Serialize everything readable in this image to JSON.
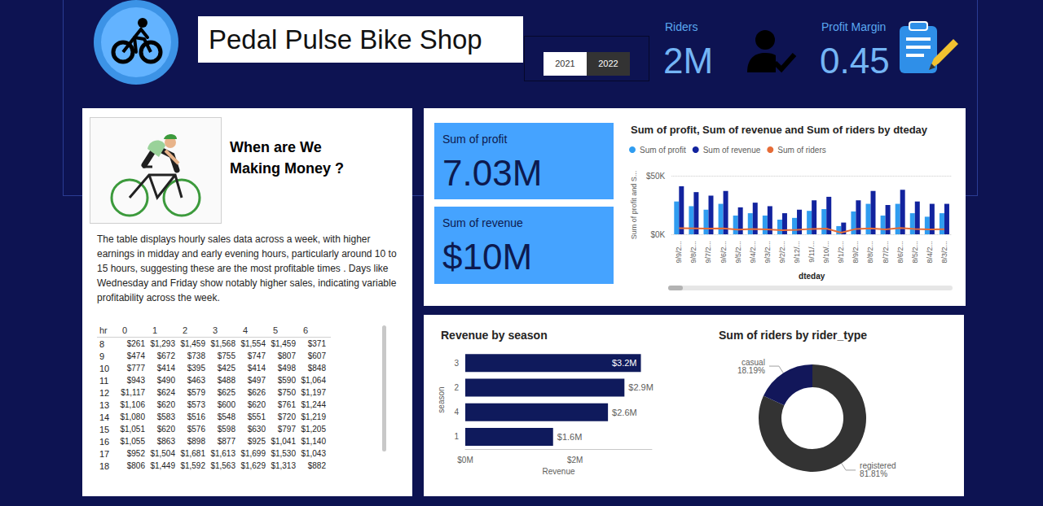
{
  "header": {
    "title": "Pedal Pulse Bike Shop",
    "slicer": {
      "options": [
        "2021",
        "2022"
      ],
      "selected": "2022"
    },
    "kpis": [
      {
        "label": "Riders",
        "value": "2M"
      },
      {
        "label": "Profit Margin",
        "value": "0.45"
      }
    ]
  },
  "story": {
    "heading": "When are We Making Money ?",
    "text": "The table displays hourly sales data across a week, with higher earnings in midday and early evening hours, particularly around 10 to 15 hours, suggesting these are the most profitable times . Days like Wednesday and Friday show notably higher sales, indicating variable profitability across the week."
  },
  "table": {
    "columns": [
      "hr",
      "0",
      "1",
      "2",
      "3",
      "4",
      "5",
      "6"
    ],
    "rows": [
      [
        "8",
        "$261",
        "$1,293",
        "$1,459",
        "$1,568",
        "$1,554",
        "$1,459",
        "$371"
      ],
      [
        "9",
        "$474",
        "$672",
        "$738",
        "$755",
        "$747",
        "$807",
        "$607"
      ],
      [
        "10",
        "$777",
        "$414",
        "$395",
        "$425",
        "$414",
        "$498",
        "$848"
      ],
      [
        "11",
        "$943",
        "$490",
        "$463",
        "$488",
        "$497",
        "$590",
        "$1,064"
      ],
      [
        "12",
        "$1,117",
        "$624",
        "$579",
        "$625",
        "$626",
        "$750",
        "$1,197"
      ],
      [
        "13",
        "$1,106",
        "$620",
        "$573",
        "$600",
        "$620",
        "$761",
        "$1,244"
      ],
      [
        "14",
        "$1,080",
        "$583",
        "$516",
        "$548",
        "$551",
        "$720",
        "$1,219"
      ],
      [
        "15",
        "$1,051",
        "$620",
        "$576",
        "$598",
        "$630",
        "$797",
        "$1,205"
      ],
      [
        "16",
        "$1,055",
        "$863",
        "$898",
        "$877",
        "$925",
        "$1,041",
        "$1,140"
      ],
      [
        "17",
        "$952",
        "$1,504",
        "$1,681",
        "$1,613",
        "$1,699",
        "$1,530",
        "$1,043"
      ],
      [
        "18",
        "$806",
        "$1,449",
        "$1,592",
        "$1,563",
        "$1,629",
        "$1,313",
        "$882"
      ]
    ]
  },
  "cards": [
    {
      "label": "Sum of profit",
      "value": "7.03M"
    },
    {
      "label": "Sum of revenue",
      "value": "$10M"
    }
  ],
  "chart_data": [
    {
      "type": "bar",
      "title": "Sum of profit, Sum of revenue and Sum of riders by dteday",
      "x_label": "dteday",
      "y_label": "Sum of profit and S...",
      "categories": [
        "9/9/2...",
        "9/8/2...",
        "9/7/2...",
        "9/6/2...",
        "9/5/2...",
        "9/4/2...",
        "9/3/2...",
        "9/2/2...",
        "9/12/...",
        "9/11/...",
        "9/10/...",
        "9/1/2...",
        "8/9/2...",
        "8/8/2...",
        "8/7/2...",
        "8/6/2...",
        "8/5/2...",
        "8/4/2...",
        "8/3/2..."
      ],
      "series": [
        {
          "name": "Sum of profit",
          "color": "#2f9cf0",
          "values": [
            28000,
            24000,
            21000,
            26000,
            16000,
            18000,
            16000,
            12500,
            14000,
            20000,
            21500,
            7000,
            19500,
            26000,
            16000,
            26000,
            18000,
            15000,
            18000
          ]
        },
        {
          "name": "Sum of revenue",
          "color": "#12239e",
          "values": [
            41000,
            36000,
            33000,
            37000,
            23000,
            27000,
            24000,
            18000,
            21000,
            29000,
            32000,
            10000,
            29000,
            37000,
            25000,
            38000,
            28000,
            26000,
            26000
          ]
        },
        {
          "name": "Sum of riders",
          "type": "line",
          "color": "#e66c37",
          "marker": "none",
          "values": [
            5200,
            5000,
            4800,
            5100,
            4000,
            4500,
            4200,
            3500,
            3800,
            4600,
            4900,
            1400,
            4600,
            5100,
            4200,
            5300,
            4500,
            4200,
            4300
          ]
        }
      ],
      "ylim": [
        0,
        50000
      ],
      "yticks": [
        {
          "value": 0,
          "label": "$0K"
        },
        {
          "value": 50000,
          "label": "$50K"
        }
      ],
      "grid": true,
      "legend": "top-left"
    },
    {
      "type": "bar",
      "orientation": "horizontal",
      "title": "Revenue by season",
      "x_label": "Revenue",
      "y_label": "season",
      "categories": [
        "3",
        "2",
        "4",
        "1"
      ],
      "values": [
        3200000,
        2900000,
        2600000,
        1600000
      ],
      "value_labels": [
        "$3.2M",
        "$2.9M",
        "$2.6M",
        "$1.6M"
      ],
      "color": "#0f1a5c",
      "xlim": [
        0,
        3400000
      ],
      "xticks": [
        {
          "value": 0,
          "label": "$0M"
        },
        {
          "value": 2000000,
          "label": "$2M"
        }
      ],
      "data_labels": true,
      "grid": false
    },
    {
      "type": "donut",
      "title": "Sum of riders by rider_type",
      "categories": [
        "registered",
        "casual"
      ],
      "values": [
        81.81,
        18.19
      ],
      "value_labels": [
        "81.81%",
        "18.19%"
      ],
      "colors": [
        "#333333",
        "#12175a"
      ],
      "data_labels": true
    }
  ]
}
